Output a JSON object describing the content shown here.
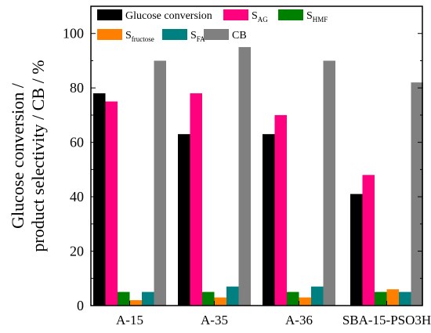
{
  "chart_data": {
    "type": "bar",
    "ylabel_line1": "Glucose conversion /",
    "ylabel_line2": "product selectivity / CB / %",
    "categories": [
      "A-15",
      "A-35",
      "A-36",
      "SBA-15-PSO3H"
    ],
    "ylim": [
      0,
      110
    ],
    "yticks": [
      0,
      20,
      40,
      60,
      80,
      100
    ],
    "grid": false,
    "legend_position": "top",
    "series": [
      {
        "name": "Glucose conversion",
        "name_main": "Glucose conversion",
        "name_sub": "",
        "color": "#000000",
        "values": [
          78,
          63,
          63,
          41
        ]
      },
      {
        "name": "SAG",
        "name_main": "S",
        "name_sub": "AG",
        "color": "#ff007f",
        "values": [
          75,
          78,
          70,
          48
        ]
      },
      {
        "name": "SHMF",
        "name_main": "S",
        "name_sub": "HMF",
        "color": "#008000",
        "values": [
          5,
          5,
          5,
          5
        ]
      },
      {
        "name": "Sfructose",
        "name_main": "S",
        "name_sub": "fructose",
        "color": "#ff8000",
        "values": [
          2,
          3,
          3,
          6
        ]
      },
      {
        "name": "SFA",
        "name_main": "S",
        "name_sub": "FA",
        "color": "#008080",
        "values": [
          5,
          7,
          7,
          5
        ]
      },
      {
        "name": "CB",
        "name_main": "CB",
        "name_sub": "",
        "color": "#808080",
        "values": [
          90,
          95,
          90,
          82
        ]
      }
    ]
  }
}
